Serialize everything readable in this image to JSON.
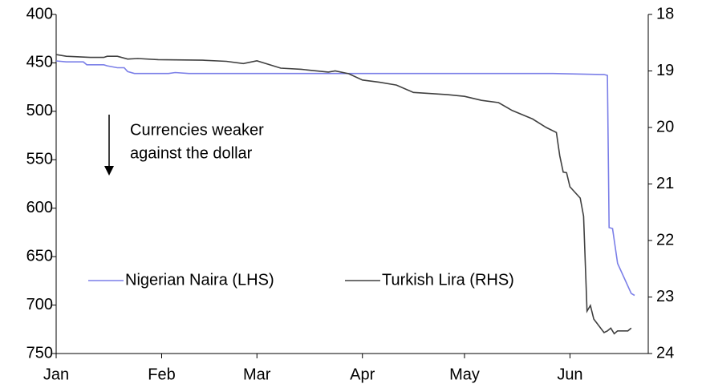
{
  "chart_data": {
    "type": "line",
    "annotation": [
      "Currencies weaker",
      "against the dollar"
    ],
    "xlim": [
      0,
      174
    ],
    "xticks": [
      {
        "value": 0,
        "label": "Jan"
      },
      {
        "value": 31,
        "label": "Feb"
      },
      {
        "value": 59,
        "label": "Mar"
      },
      {
        "value": 90,
        "label": "Apr"
      },
      {
        "value": 120,
        "label": "May"
      },
      {
        "value": 151,
        "label": "Jun"
      }
    ],
    "ylim": [
      400,
      750
    ],
    "yticks": [
      400,
      450,
      500,
      550,
      600,
      650,
      700,
      750
    ],
    "y_inverted": true,
    "y2lim": [
      18,
      24
    ],
    "y2ticks": [
      18,
      19,
      20,
      21,
      22,
      23,
      24
    ],
    "y2_inverted": true,
    "grid": false,
    "legend": "center",
    "series": [
      {
        "name": "Nigerian Naira (LHS)",
        "color": "#7b7fe8",
        "axis": "y",
        "x": [
          0,
          3,
          8,
          9,
          14,
          15,
          18,
          20,
          21,
          23,
          33,
          35,
          39,
          146,
          160,
          161,
          162,
          162.5,
          163.5,
          165,
          169,
          170
        ],
        "values": [
          448,
          449,
          449,
          452,
          452,
          453,
          455,
          455,
          459,
          461,
          461,
          460,
          461,
          461,
          462,
          462,
          463,
          620,
          621,
          657,
          688,
          690
        ]
      },
      {
        "name": "Turkish Lira (RHS)",
        "color": "#404040",
        "axis": "y2",
        "x": [
          0,
          3,
          10,
          14,
          15,
          18,
          21,
          24,
          30,
          43,
          50,
          55,
          59,
          66,
          72,
          75,
          80,
          82,
          86,
          90,
          95,
          100,
          105,
          110,
          115,
          120,
          125,
          130,
          134,
          140,
          144,
          147,
          148,
          149,
          150,
          151,
          154,
          155,
          156,
          157,
          158,
          161,
          162,
          163,
          164,
          165,
          168,
          169
        ],
        "values": [
          18.71,
          18.74,
          18.76,
          18.76,
          18.74,
          18.74,
          18.79,
          18.78,
          18.8,
          18.81,
          18.83,
          18.87,
          18.82,
          18.95,
          18.97,
          18.99,
          19.02,
          19.0,
          19.05,
          19.16,
          19.2,
          19.25,
          19.38,
          19.4,
          19.42,
          19.45,
          19.52,
          19.56,
          19.7,
          19.85,
          20.0,
          20.09,
          20.5,
          20.79,
          20.8,
          21.05,
          21.25,
          21.57,
          23.25,
          23.15,
          23.39,
          23.63,
          23.6,
          23.55,
          23.65,
          23.6,
          23.6,
          23.55
        ]
      }
    ]
  }
}
